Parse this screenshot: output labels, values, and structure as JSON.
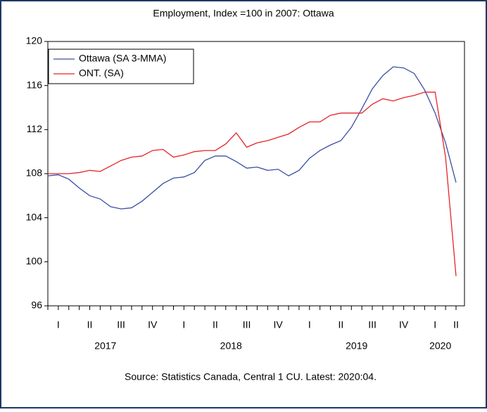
{
  "chart_data": {
    "type": "line",
    "title": "Employment, Index =100 in 2007: Ottawa",
    "source": "Source: Statistics Canada, Central 1 CU. Latest: 2020:04.",
    "categories": [
      null,
      "I",
      null,
      null,
      "II",
      null,
      null,
      "III",
      null,
      null,
      "IV",
      null,
      null,
      "I",
      null,
      null,
      "II",
      null,
      null,
      "III",
      null,
      null,
      "IV",
      null,
      null,
      "I",
      null,
      null,
      "II",
      null,
      null,
      "III",
      null,
      null,
      "IV",
      null,
      null,
      "I",
      null,
      "II"
    ],
    "year_categories": [
      null,
      null,
      null,
      null,
      null,
      "2017",
      null,
      null,
      null,
      null,
      null,
      null,
      null,
      null,
      null,
      null,
      null,
      "2018",
      null,
      null,
      null,
      null,
      null,
      null,
      null,
      null,
      null,
      null,
      null,
      "2019",
      null,
      null,
      null,
      null,
      null,
      null,
      null,
      "2020",
      null,
      null
    ],
    "series": [
      {
        "name": "Ottawa (SA 3-MMA)",
        "color": "#3a4fa0",
        "values": [
          107.8,
          107.9,
          107.5,
          106.7,
          106.0,
          105.7,
          105.0,
          104.8,
          104.9,
          105.5,
          106.3,
          107.1,
          107.6,
          107.7,
          108.1,
          109.2,
          109.6,
          109.6,
          109.1,
          108.5,
          108.6,
          108.3,
          108.4,
          107.8,
          108.3,
          109.4,
          110.1,
          110.6,
          111.0,
          112.2,
          113.9,
          115.7,
          116.9,
          117.7,
          117.6,
          117.1,
          115.6,
          113.5,
          110.8,
          107.2
        ]
      },
      {
        "name": "ONT. (SA)",
        "color": "#e8232a",
        "values": [
          108.0,
          108.0,
          108.0,
          108.1,
          108.3,
          108.2,
          108.7,
          109.2,
          109.5,
          109.6,
          110.1,
          110.2,
          109.5,
          109.7,
          110.0,
          110.1,
          110.1,
          110.7,
          111.7,
          110.4,
          110.8,
          111.0,
          111.3,
          111.6,
          112.2,
          112.7,
          112.7,
          113.3,
          113.5,
          113.5,
          113.5,
          114.3,
          114.8,
          114.6,
          114.9,
          115.1,
          115.4,
          115.4,
          109.5,
          98.7
        ]
      }
    ],
    "ylim": [
      96,
      120
    ],
    "yticks": [
      96,
      100,
      104,
      108,
      112,
      116,
      120
    ],
    "legend": "upper-left"
  }
}
